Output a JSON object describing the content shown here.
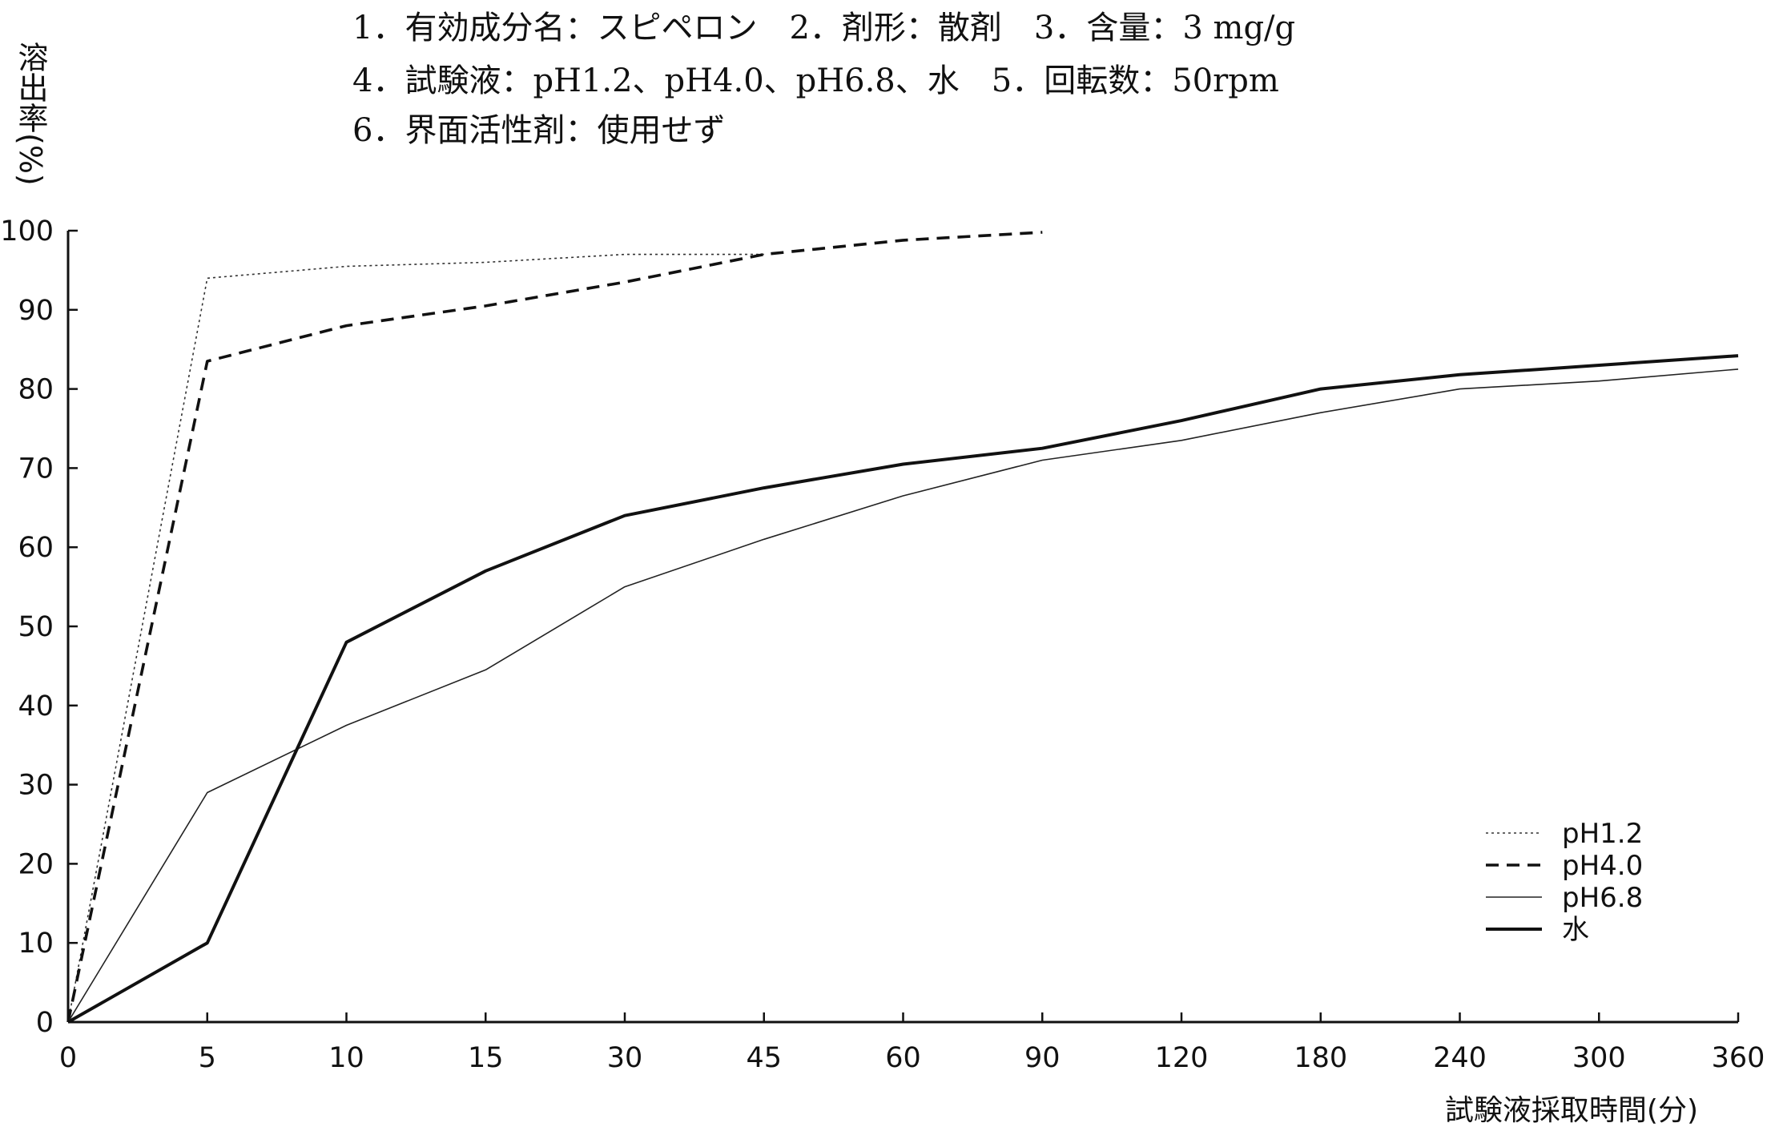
{
  "header": {
    "line1": "1．有効成分名：スピペロン　2．剤形：散剤　3．含量：3 mg/g",
    "line2": "4．試験液：pH1.2、pH4.0、pH6.8、水　5．回転数：50rpm",
    "line3": "6．界面活性剤：使用せず"
  },
  "chart_data": {
    "type": "line",
    "title": "",
    "ylabel": "溶出率(%)",
    "xlabel": "試験液採取時間(分)",
    "x_scale": "categorical (equally spaced sampling times)",
    "categories": [
      "0",
      "5",
      "10",
      "15",
      "30",
      "45",
      "60",
      "90",
      "120",
      "180",
      "240",
      "300",
      "360"
    ],
    "ylim": [
      0,
      100
    ],
    "yticks": [
      "0",
      "10",
      "20",
      "30",
      "40",
      "50",
      "60",
      "70",
      "80",
      "90",
      "100"
    ],
    "grid": false,
    "legend_position": "bottom-right",
    "series": [
      {
        "name": "pH1.2",
        "style": "dotted",
        "values": [
          0,
          94,
          95.5,
          96,
          97,
          97,
          null,
          null,
          null,
          null,
          null,
          null,
          null
        ]
      },
      {
        "name": "pH4.0",
        "style": "dashed",
        "values": [
          0,
          83.5,
          88,
          90.5,
          93.5,
          97,
          98.8,
          99.8,
          null,
          null,
          null,
          null,
          null
        ]
      },
      {
        "name": "pH6.8",
        "style": "thin",
        "values": [
          0,
          29,
          37.5,
          44.5,
          55,
          61,
          66.5,
          71,
          73.5,
          77,
          80,
          81,
          82.5
        ]
      },
      {
        "name": "水",
        "style": "thick",
        "values": [
          0,
          10,
          48,
          57,
          64,
          67.5,
          70.5,
          72.5,
          76,
          80,
          81.8,
          83,
          84.2
        ]
      }
    ]
  }
}
